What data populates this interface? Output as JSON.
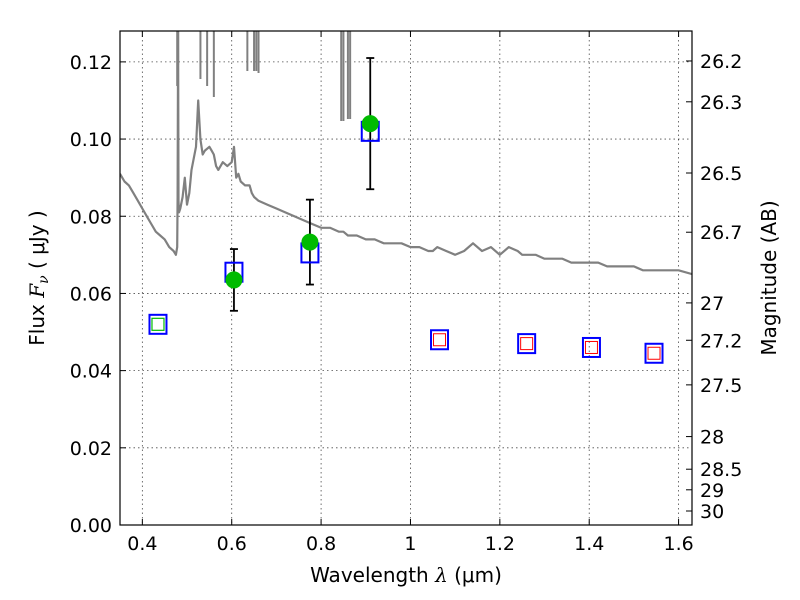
{
  "chart_data": {
    "type": "scatter",
    "xlabel": {
      "prefix": "Wavelength",
      "math": "λ",
      "suffix": "(μm)"
    },
    "ylabel": {
      "prefix": "Flux",
      "math": "F",
      "sub": "ν",
      "suffix": "( μJy )"
    },
    "y2label": "Magnitude (AB)",
    "xlim": [
      0.35,
      1.63
    ],
    "ylim": [
      0.0,
      0.128
    ],
    "xticks": [
      0.4,
      0.6,
      0.8,
      1.0,
      1.2,
      1.4,
      1.6
    ],
    "xtick_labels": [
      "0.4",
      "0.6",
      "0.8",
      "1",
      "1.2",
      "1.4",
      "1.6"
    ],
    "yticks": [
      0.0,
      0.02,
      0.04,
      0.06,
      0.08,
      0.1,
      0.12
    ],
    "ytick_labels": [
      "0.00",
      "0.02",
      "0.04",
      "0.06",
      "0.08",
      "0.10",
      "0.12"
    ],
    "y2ticks": [
      {
        "mag": 26.2,
        "label": "26.2"
      },
      {
        "mag": 26.3,
        "label": "26.3"
      },
      {
        "mag": 26.5,
        "label": "26.5"
      },
      {
        "mag": 26.7,
        "label": "26.7"
      },
      {
        "mag": 27.0,
        "label": "27"
      },
      {
        "mag": 27.2,
        "label": "27.2"
      },
      {
        "mag": 27.5,
        "label": "27.5"
      },
      {
        "mag": 28.0,
        "label": "28"
      },
      {
        "mag": 28.5,
        "label": "28.5"
      },
      {
        "mag": 29.0,
        "label": "29"
      },
      {
        "mag": 30.0,
        "label": "30"
      }
    ],
    "grid": true,
    "colors": {
      "sed": "#808080",
      "observed": "#00bb00",
      "model_box": "#0000ff",
      "upper_box": "#ff0000",
      "errorbar": "#000000"
    },
    "series": [
      {
        "kind": "model_spectrum",
        "x": [
          0.35,
          0.36,
          0.37,
          0.38,
          0.39,
          0.4,
          0.41,
          0.42,
          0.43,
          0.44,
          0.45,
          0.46,
          0.47,
          0.475,
          0.478,
          0.479,
          0.48,
          0.481,
          0.482,
          0.485,
          0.49,
          0.495,
          0.5,
          0.505,
          0.51,
          0.52,
          0.525,
          0.53,
          0.535,
          0.54,
          0.55,
          0.555,
          0.56,
          0.565,
          0.57,
          0.58,
          0.59,
          0.6,
          0.605,
          0.61,
          0.615,
          0.62,
          0.63,
          0.64,
          0.645,
          0.65,
          0.66,
          0.68,
          0.7,
          0.72,
          0.74,
          0.76,
          0.78,
          0.8,
          0.82,
          0.84,
          0.845,
          0.85,
          0.86,
          0.87,
          0.88,
          0.9,
          0.92,
          0.94,
          0.96,
          0.98,
          1.0,
          1.02,
          1.04,
          1.05,
          1.06,
          1.08,
          1.1,
          1.12,
          1.14,
          1.16,
          1.18,
          1.2,
          1.22,
          1.24,
          1.25,
          1.26,
          1.28,
          1.3,
          1.32,
          1.34,
          1.36,
          1.38,
          1.4,
          1.42,
          1.44,
          1.46,
          1.48,
          1.5,
          1.52,
          1.54,
          1.56,
          1.58,
          1.6,
          1.63
        ],
        "y": [
          0.091,
          0.089,
          0.088,
          0.086,
          0.084,
          0.082,
          0.08,
          0.078,
          0.076,
          0.075,
          0.074,
          0.072,
          0.071,
          0.07,
          0.072,
          0.085,
          0.128,
          0.084,
          0.081,
          0.082,
          0.085,
          0.09,
          0.083,
          0.086,
          0.092,
          0.098,
          0.11,
          0.1,
          0.096,
          0.097,
          0.098,
          0.097,
          0.096,
          0.093,
          0.092,
          0.094,
          0.093,
          0.094,
          0.098,
          0.09,
          0.091,
          0.089,
          0.088,
          0.088,
          0.086,
          0.085,
          0.084,
          0.083,
          0.082,
          0.081,
          0.08,
          0.079,
          0.078,
          0.077,
          0.077,
          0.076,
          0.076,
          0.076,
          0.075,
          0.075,
          0.075,
          0.074,
          0.074,
          0.073,
          0.073,
          0.073,
          0.072,
          0.072,
          0.071,
          0.071,
          0.072,
          0.071,
          0.07,
          0.071,
          0.073,
          0.071,
          0.072,
          0.07,
          0.072,
          0.071,
          0.07,
          0.07,
          0.07,
          0.069,
          0.069,
          0.069,
          0.068,
          0.068,
          0.068,
          0.068,
          0.067,
          0.067,
          0.067,
          0.067,
          0.066,
          0.066,
          0.066,
          0.066,
          0.066,
          0.065
        ]
      },
      {
        "kind": "observed",
        "x": [
          0.605,
          0.775,
          0.91
        ],
        "y": [
          0.0635,
          0.0733,
          0.104
        ],
        "err": [
          0.008,
          0.011,
          0.017
        ]
      },
      {
        "kind": "model_boxes",
        "x": [
          0.435,
          0.605,
          0.775,
          0.91,
          1.065,
          1.26,
          1.405,
          1.545
        ],
        "y": [
          0.052,
          0.0655,
          0.0705,
          0.102,
          0.048,
          0.047,
          0.046,
          0.0445
        ]
      },
      {
        "kind": "upper_limit_boxes",
        "x": [
          1.065,
          1.26,
          1.405,
          1.545
        ],
        "y": [
          0.048,
          0.047,
          0.046,
          0.0445
        ]
      },
      {
        "kind": "green_box",
        "x": [
          0.435
        ],
        "y": [
          0.052
        ]
      }
    ]
  }
}
